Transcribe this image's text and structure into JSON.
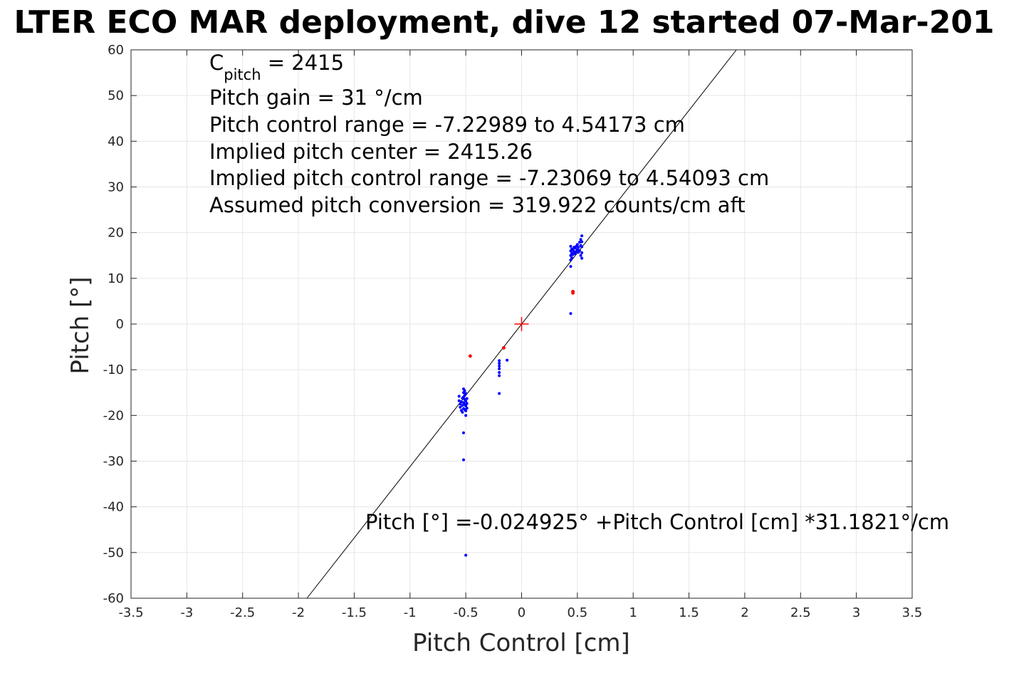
{
  "chart_data": {
    "type": "scatter",
    "title": "LTER ECO MAR deployment, dive 12 started 07-Mar-201",
    "xlabel": "Pitch Control [cm]",
    "ylabel": "Pitch [°]",
    "xlim": [
      -3.5,
      3.5
    ],
    "ylim": [
      -60,
      60
    ],
    "xticks": [
      -3.5,
      -3,
      -2.5,
      -2,
      -1.5,
      -1,
      -0.5,
      0,
      0.5,
      1,
      1.5,
      2,
      2.5,
      3,
      3.5
    ],
    "yticks": [
      -60,
      -50,
      -40,
      -30,
      -20,
      -10,
      0,
      10,
      20,
      30,
      40,
      50,
      60
    ],
    "grid": true,
    "annotations": {
      "cpitch_main": "C",
      "cpitch_sub": "pitch",
      "cpitch_rest": " = 2415",
      "line2": "Pitch gain = 31 °/cm",
      "line3": "Pitch control range = -7.22989 to 4.54173 cm",
      "line4": "Implied pitch center = 2415.26",
      "line5": "Implied pitch control range = -7.23069 to 4.54093 cm",
      "line6": "Assumed pitch conversion = 319.922 counts/cm aft",
      "fit_equation": "Pitch [°] =-0.024925° +Pitch Control [cm] *31.1821°/cm"
    },
    "fit_line": {
      "intercept": -0.024925,
      "slope": 31.1821,
      "color": "#000000"
    },
    "center_marker": {
      "x": 0,
      "y": 0,
      "color": "#ff0000"
    },
    "series": [
      {
        "color": "#0000ff",
        "points": [
          [
            -0.56,
            -15.8
          ],
          [
            -0.56,
            -16.8
          ],
          [
            -0.55,
            -17.5
          ],
          [
            -0.55,
            -18.2
          ],
          [
            -0.54,
            -18.9
          ],
          [
            -0.54,
            -17.0
          ],
          [
            -0.53,
            -16.2
          ],
          [
            -0.53,
            -17.8
          ],
          [
            -0.53,
            -19.3
          ],
          [
            -0.52,
            -14.2
          ],
          [
            -0.52,
            -15.0
          ],
          [
            -0.52,
            -16.0
          ],
          [
            -0.52,
            -17.2
          ],
          [
            -0.52,
            -18.5
          ],
          [
            -0.51,
            -14.6
          ],
          [
            -0.51,
            -15.6
          ],
          [
            -0.51,
            -16.5
          ],
          [
            -0.51,
            -17.6
          ],
          [
            -0.51,
            -18.7
          ],
          [
            -0.5,
            -15.2
          ],
          [
            -0.5,
            -16.9
          ],
          [
            -0.5,
            -17.9
          ],
          [
            -0.5,
            -19.0
          ],
          [
            -0.5,
            -20.0
          ],
          [
            -0.49,
            -16.3
          ],
          [
            -0.49,
            -17.4
          ],
          [
            -0.49,
            -18.4
          ],
          [
            -0.52,
            -23.8
          ],
          [
            -0.52,
            -29.7
          ],
          [
            -0.5,
            -50.6
          ],
          [
            -0.2,
            -8.0
          ],
          [
            -0.2,
            -8.6
          ],
          [
            -0.2,
            -9.2
          ],
          [
            -0.2,
            -9.8
          ],
          [
            -0.2,
            -10.6
          ],
          [
            -0.2,
            -11.3
          ],
          [
            -0.13,
            -7.9
          ],
          [
            -0.2,
            -15.2
          ],
          [
            0.44,
            2.3
          ],
          [
            0.44,
            12.6
          ],
          [
            0.44,
            14.0
          ],
          [
            0.44,
            15.0
          ],
          [
            0.44,
            16.0
          ],
          [
            0.44,
            17.0
          ],
          [
            0.45,
            14.5
          ],
          [
            0.45,
            15.5
          ],
          [
            0.45,
            16.4
          ],
          [
            0.46,
            15.2
          ],
          [
            0.46,
            16.2
          ],
          [
            0.47,
            15.8
          ],
          [
            0.47,
            16.8
          ],
          [
            0.48,
            15.4
          ],
          [
            0.48,
            16.6
          ],
          [
            0.49,
            15.9
          ],
          [
            0.49,
            17.0
          ],
          [
            0.5,
            16.3
          ],
          [
            0.5,
            17.4
          ],
          [
            0.51,
            15.7
          ],
          [
            0.51,
            16.8
          ],
          [
            0.52,
            17.9
          ],
          [
            0.52,
            16.1
          ],
          [
            0.53,
            17.2
          ],
          [
            0.53,
            18.5
          ],
          [
            0.53,
            15.0
          ],
          [
            0.54,
            19.3
          ],
          [
            0.54,
            18.0
          ],
          [
            0.54,
            16.9
          ],
          [
            0.54,
            15.6
          ],
          [
            0.54,
            14.4
          ]
        ]
      },
      {
        "color": "#ff0000",
        "points": [
          [
            -0.46,
            -7.0
          ],
          [
            -0.16,
            -5.2
          ],
          [
            0.46,
            6.8
          ],
          [
            0.46,
            7.1
          ]
        ]
      }
    ]
  }
}
